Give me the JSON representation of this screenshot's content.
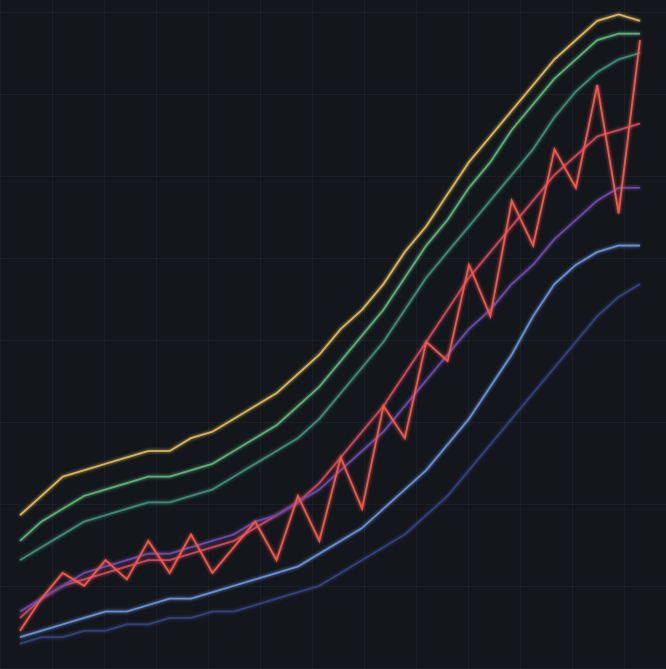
{
  "chart_data": {
    "type": "line",
    "x": [
      0,
      1,
      2,
      3,
      4,
      5,
      6,
      7,
      8,
      9,
      10,
      11,
      12,
      13,
      14,
      15,
      16,
      17,
      18,
      19,
      20,
      21,
      22,
      23,
      24,
      25,
      26,
      27,
      28,
      29
    ],
    "xlim": [
      0,
      29
    ],
    "ylim": [
      0,
      100
    ],
    "series": [
      {
        "color": "#d8b45a",
        "values": [
          21,
          24,
          27,
          28,
          29,
          30,
          31,
          31,
          33,
          34,
          36,
          38,
          40,
          43,
          46,
          50,
          53,
          57,
          62,
          66,
          71,
          76,
          80,
          84,
          88,
          92,
          95,
          98,
          99,
          98
        ]
      },
      {
        "color": "#5fae7a",
        "values": [
          17,
          20,
          22,
          24,
          25,
          26,
          27,
          27,
          28,
          29,
          31,
          33,
          35,
          38,
          41,
          45,
          49,
          53,
          58,
          63,
          67,
          72,
          76,
          81,
          85,
          89,
          92,
          95,
          96,
          96
        ]
      },
      {
        "color": "#3f8a72",
        "values": [
          14,
          16,
          18,
          20,
          21,
          22,
          23,
          23,
          24,
          25,
          27,
          29,
          31,
          33,
          36,
          40,
          44,
          48,
          53,
          58,
          62,
          66,
          70,
          74,
          78,
          83,
          87,
          90,
          92,
          93
        ]
      },
      {
        "color": "#c9465a",
        "values": [
          5,
          8,
          10,
          11,
          12,
          13,
          14,
          14,
          15,
          16,
          17,
          19,
          21,
          23,
          26,
          30,
          34,
          38,
          43,
          48,
          53,
          58,
          62,
          66,
          70,
          74,
          77,
          80,
          81,
          82
        ]
      },
      {
        "color": "#6a4aa8",
        "values": [
          6,
          8,
          10,
          12,
          13,
          14,
          15,
          15,
          16,
          17,
          18,
          20,
          21,
          23,
          25,
          28,
          31,
          34,
          38,
          42,
          46,
          50,
          53,
          57,
          60,
          64,
          67,
          70,
          72,
          72
        ]
      },
      {
        "color": "#6b8fd6",
        "values": [
          2,
          3,
          4,
          5,
          6,
          6,
          7,
          8,
          8,
          9,
          10,
          11,
          12,
          13,
          15,
          17,
          19,
          22,
          25,
          28,
          32,
          36,
          41,
          46,
          52,
          57,
          60,
          62,
          63,
          63
        ]
      },
      {
        "color": "#34407a",
        "values": [
          1,
          2,
          2,
          3,
          3,
          4,
          4,
          5,
          5,
          6,
          6,
          7,
          8,
          9,
          10,
          12,
          14,
          16,
          18,
          21,
          24,
          28,
          32,
          36,
          40,
          44,
          48,
          52,
          55,
          57
        ]
      },
      {
        "color": "#f0584f",
        "values": [
          3,
          8,
          12,
          10,
          14,
          11,
          17,
          12,
          18,
          12,
          16,
          20,
          14,
          24,
          17,
          30,
          22,
          38,
          33,
          48,
          45,
          60,
          52,
          70,
          63,
          78,
          72,
          88,
          68,
          95
        ]
      }
    ]
  }
}
